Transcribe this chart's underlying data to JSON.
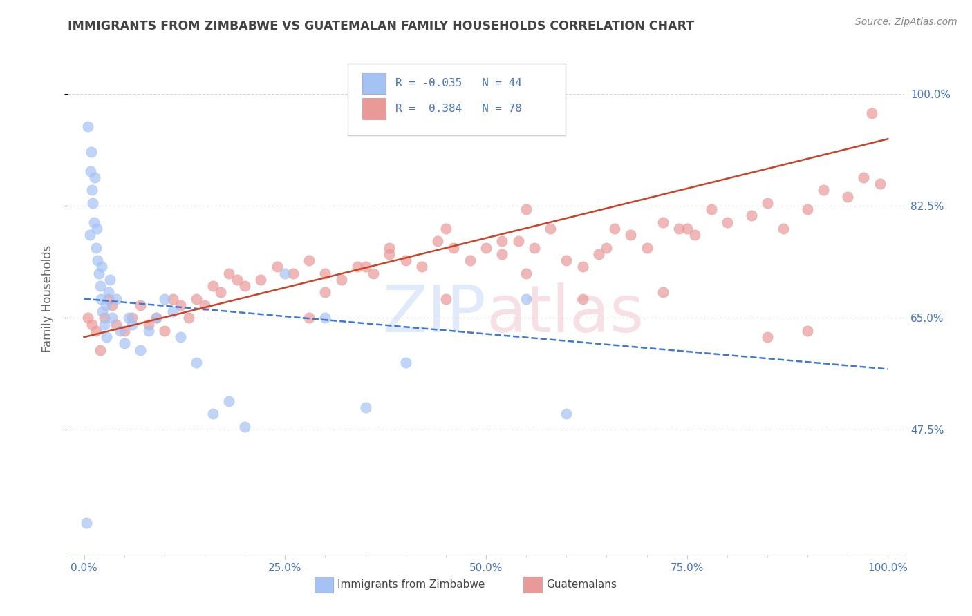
{
  "title": "IMMIGRANTS FROM ZIMBABWE VS GUATEMALAN FAMILY HOUSEHOLDS CORRELATION CHART",
  "source": "Source: ZipAtlas.com",
  "ylabel": "Family Households",
  "x_tick_labels": [
    "0.0%",
    "",
    "",
    "",
    "",
    "25.0%",
    "",
    "",
    "",
    "",
    "50.0%",
    "",
    "",
    "",
    "",
    "75.0%",
    "",
    "",
    "",
    "",
    "100.0%"
  ],
  "x_tick_major": [
    0,
    25,
    50,
    75,
    100
  ],
  "x_tick_minor": [
    5,
    10,
    15,
    20,
    30,
    35,
    40,
    45,
    55,
    60,
    65,
    70,
    80,
    85,
    90,
    95
  ],
  "y_tick_vals": [
    47.5,
    65.0,
    82.5,
    100.0
  ],
  "xlim": [
    -2,
    102
  ],
  "ylim": [
    28,
    108
  ],
  "blue_color": "#a4c2f4",
  "blue_line_color": "#3c78d8",
  "pink_color": "#ea9999",
  "pink_line_color": "#cc4125",
  "grid_color": "#cccccc",
  "axis_color": "#4472c4",
  "title_color": "#434343",
  "source_color": "#888888",
  "ylabel_color": "#666666",
  "watermark_color": "#ddeeff",
  "blue_R": -0.035,
  "blue_N": 44,
  "pink_R": 0.384,
  "pink_N": 78,
  "blue_x": [
    0.3,
    0.5,
    0.7,
    0.8,
    0.9,
    1.0,
    1.1,
    1.2,
    1.3,
    1.5,
    1.6,
    1.7,
    1.8,
    2.0,
    2.1,
    2.2,
    2.3,
    2.5,
    2.7,
    2.8,
    3.0,
    3.2,
    3.5,
    4.0,
    4.5,
    5.0,
    5.5,
    6.0,
    7.0,
    8.0,
    9.0,
    10.0,
    11.0,
    12.0,
    14.0,
    16.0,
    18.0,
    20.0,
    25.0,
    30.0,
    35.0,
    40.0,
    55.0,
    60.0
  ],
  "blue_y": [
    33,
    95,
    78,
    88,
    91,
    85,
    83,
    80,
    87,
    76,
    79,
    74,
    72,
    70,
    68,
    73,
    66,
    64,
    67,
    62,
    69,
    71,
    65,
    68,
    63,
    61,
    65,
    64,
    60,
    63,
    65,
    68,
    66,
    62,
    58,
    50,
    52,
    48,
    72,
    65,
    51,
    58,
    68,
    50
  ],
  "pink_x": [
    0.5,
    1.0,
    1.5,
    2.0,
    2.5,
    3.0,
    3.5,
    4.0,
    5.0,
    6.0,
    7.0,
    8.0,
    9.0,
    10.0,
    11.0,
    12.0,
    13.0,
    14.0,
    15.0,
    16.0,
    17.0,
    18.0,
    19.0,
    20.0,
    22.0,
    24.0,
    26.0,
    28.0,
    30.0,
    32.0,
    34.0,
    36.0,
    38.0,
    40.0,
    42.0,
    44.0,
    46.0,
    48.0,
    50.0,
    52.0,
    54.0,
    56.0,
    58.0,
    60.0,
    62.0,
    64.0,
    66.0,
    68.0,
    70.0,
    72.0,
    74.0,
    76.0,
    78.0,
    80.0,
    83.0,
    85.0,
    87.0,
    90.0,
    92.0,
    95.0,
    97.0,
    99.0,
    35.0,
    45.0,
    55.0,
    45.0,
    65.0,
    55.0,
    38.0,
    28.0,
    52.0,
    62.0,
    72.0,
    75.0,
    85.0,
    90.0,
    98.0,
    30.0
  ],
  "pink_y": [
    65,
    64,
    63,
    60,
    65,
    68,
    67,
    64,
    63,
    65,
    67,
    64,
    65,
    63,
    68,
    67,
    65,
    68,
    67,
    70,
    69,
    72,
    71,
    70,
    71,
    73,
    72,
    74,
    69,
    71,
    73,
    72,
    75,
    74,
    73,
    77,
    76,
    74,
    76,
    75,
    77,
    76,
    79,
    74,
    73,
    75,
    79,
    78,
    76,
    80,
    79,
    78,
    82,
    80,
    81,
    83,
    79,
    82,
    85,
    84,
    87,
    86,
    73,
    79,
    82,
    68,
    76,
    72,
    76,
    65,
    77,
    68,
    69,
    79,
    62,
    63,
    97,
    72
  ]
}
